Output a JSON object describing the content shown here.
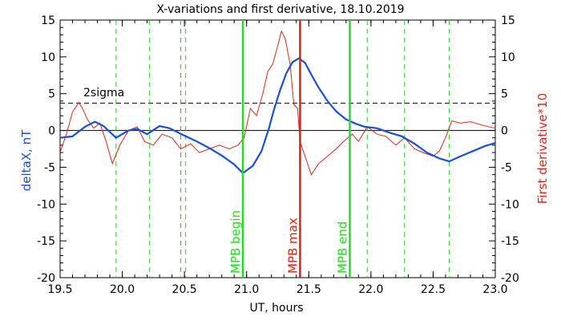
{
  "chart_data": {
    "type": "line",
    "title": "X-variations and first derivative, 18.10.2019",
    "xlabel": "UT, hours",
    "ylabel_left": "deltaX, nT",
    "ylabel_right": "First derivative*10",
    "xlim": [
      19.5,
      23.0
    ],
    "ylim": [
      -20,
      15
    ],
    "x_ticks": [
      "19.5",
      "20.0",
      "20.5",
      "21.0",
      "21.5",
      "22.0",
      "22.5",
      "23.0"
    ],
    "y_ticks_left": [
      "-20",
      "-15",
      "-10",
      "-5",
      "0",
      "5",
      "10",
      "15"
    ],
    "y_ticks_right": [
      "-20",
      "-15",
      "-10",
      "-5",
      "0",
      "5",
      "10",
      "15"
    ],
    "two_sigma": {
      "label": "2sigma",
      "value": 3.7
    },
    "zero_line": 0,
    "colors": {
      "deltaX": "#1a4fd6",
      "derivative": "#d42a1a",
      "event_lines": "#22dd22",
      "max_line": "#dd2211",
      "dashed_markers": "#22cc22"
    },
    "dashed_markers_x": [
      19.95,
      20.22,
      20.47,
      20.51,
      21.97,
      22.27,
      22.63
    ],
    "events": [
      {
        "label": "MPB begin",
        "x": 20.97,
        "color": "#22dd22"
      },
      {
        "label": "MPB max",
        "x": 21.43,
        "color": "#dd2211"
      },
      {
        "label": "MPB end",
        "x": 21.83,
        "color": "#22dd22"
      }
    ],
    "series": [
      {
        "name": "deltaX",
        "axis": "left",
        "x": [
          19.5,
          19.6,
          19.7,
          19.78,
          19.85,
          19.95,
          20.05,
          20.12,
          20.2,
          20.3,
          20.38,
          20.5,
          20.6,
          20.7,
          20.8,
          20.9,
          20.97,
          21.05,
          21.12,
          21.18,
          21.22,
          21.27,
          21.32,
          21.37,
          21.42,
          21.47,
          21.52,
          21.58,
          21.65,
          21.72,
          21.8,
          21.88,
          21.95,
          22.05,
          22.15,
          22.25,
          22.35,
          22.45,
          22.55,
          22.63,
          22.72,
          22.82,
          22.92,
          23.0
        ],
        "values": [
          -1.0,
          -0.8,
          0.5,
          1.2,
          0.6,
          -1.0,
          0.0,
          0.2,
          -0.5,
          0.6,
          0.3,
          -0.7,
          -1.5,
          -2.4,
          -3.4,
          -4.6,
          -5.8,
          -4.8,
          -2.8,
          0.3,
          2.8,
          5.5,
          7.8,
          9.3,
          9.8,
          9.2,
          7.6,
          5.8,
          4.0,
          2.6,
          1.5,
          0.9,
          0.5,
          0.3,
          -0.3,
          -0.8,
          -1.8,
          -3.0,
          -3.8,
          -4.2,
          -3.5,
          -2.8,
          -2.1,
          -1.7
        ]
      },
      {
        "name": "First derivative*10",
        "axis": "right",
        "x": [
          19.5,
          19.55,
          19.6,
          19.65,
          19.68,
          19.72,
          19.77,
          19.82,
          19.87,
          19.92,
          19.98,
          20.05,
          20.12,
          20.18,
          20.25,
          20.32,
          20.4,
          20.47,
          20.55,
          20.62,
          20.7,
          20.78,
          20.86,
          20.93,
          20.98,
          21.03,
          21.08,
          21.13,
          21.17,
          21.21,
          21.25,
          21.28,
          21.31,
          21.35,
          21.38,
          21.41,
          21.43,
          21.47,
          21.52,
          21.58,
          21.65,
          21.72,
          21.78,
          21.85,
          21.9,
          21.97,
          22.05,
          22.12,
          22.2,
          22.27,
          22.35,
          22.42,
          22.5,
          22.55,
          22.6,
          22.65,
          22.72,
          22.8,
          22.9,
          23.0
        ],
        "values": [
          -3.0,
          -0.5,
          2.5,
          3.8,
          3.0,
          1.5,
          0.3,
          1.0,
          -1.5,
          -4.5,
          -2.0,
          0.0,
          0.5,
          -1.5,
          -2.0,
          -0.5,
          -1.0,
          -2.5,
          -1.8,
          -3.0,
          -2.5,
          -2.0,
          -2.5,
          -2.0,
          -1.0,
          3.0,
          2.0,
          5.0,
          8.0,
          9.0,
          11.5,
          13.5,
          12.5,
          9.0,
          3.5,
          3.0,
          -1.5,
          -3.5,
          -6.0,
          -4.5,
          -3.5,
          -2.5,
          -1.5,
          -0.5,
          -1.5,
          0.5,
          -0.5,
          -0.8,
          -2.0,
          -1.0,
          -2.5,
          -3.0,
          -3.5,
          -2.8,
          -1.0,
          1.3,
          1.0,
          1.2,
          0.7,
          0.3
        ]
      }
    ]
  }
}
